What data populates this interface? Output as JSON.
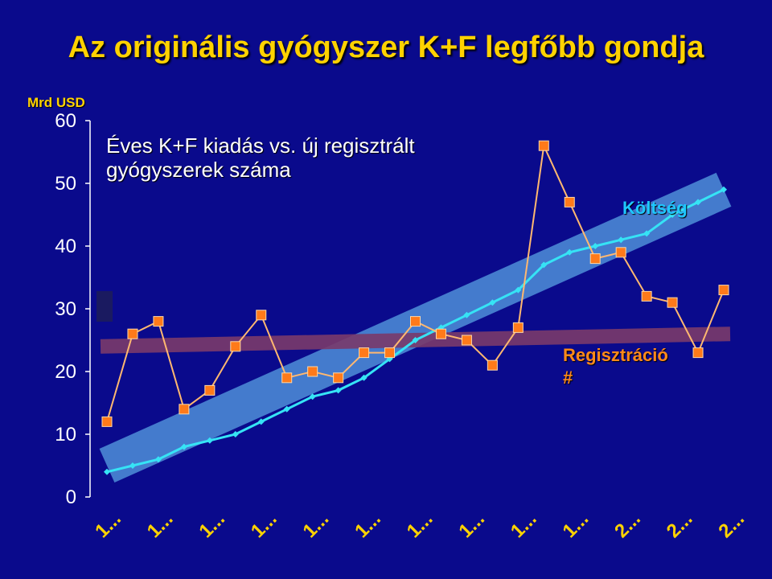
{
  "page": {
    "title": "Az originális gyógyszer K+F legfőbb gondja",
    "unit_label": "Mrd USD",
    "subtitle_line1": "Éves K+F kiadás vs. új regisztrált",
    "subtitle_line2": "gyógyszerek száma",
    "cost_label": "Költség",
    "reg_label_line1": "Regisztráció",
    "reg_label_line2": "#"
  },
  "colors": {
    "background": "#0a0a8c",
    "title": "#ffd200",
    "cost_line": "#36e3f5",
    "registration_line": "#ffb870",
    "registration_marker": "#ff7a1a",
    "trend_cost": "#4f8fd8",
    "trend_registration": "#7a3a6a"
  },
  "chart_data": {
    "type": "line",
    "title": "Éves K+F kiadás vs. új regisztrált gyógyszerek száma",
    "ylabel": "Mrd USD",
    "ylim": [
      0,
      60
    ],
    "yticks": [
      0,
      10,
      20,
      30,
      40,
      50,
      60
    ],
    "xtick_labels": [
      "1...",
      "1...",
      "1...",
      "1...",
      "1...",
      "1...",
      "1...",
      "1...",
      "1...",
      "1...",
      "2...",
      "2...",
      "2..."
    ],
    "x_points": 25,
    "series": [
      {
        "name": "Költség",
        "values": [
          4,
          5,
          6,
          8,
          9,
          10,
          12,
          14,
          16,
          17,
          19,
          22,
          25,
          27,
          29,
          31,
          33,
          37,
          39,
          40,
          41,
          42,
          45,
          47,
          49
        ]
      },
      {
        "name": "Regisztráció #",
        "values": [
          12,
          26,
          28,
          14,
          17,
          24,
          29,
          19,
          20,
          19,
          23,
          23,
          28,
          26,
          25,
          21,
          27,
          56,
          47,
          38,
          39,
          32,
          31,
          23,
          33
        ]
      }
    ],
    "trend_bands": [
      {
        "name": "Költség",
        "start": 5,
        "end": 49
      },
      {
        "name": "Regisztráció #",
        "start": 24,
        "end": 26
      }
    ],
    "grid": false
  }
}
